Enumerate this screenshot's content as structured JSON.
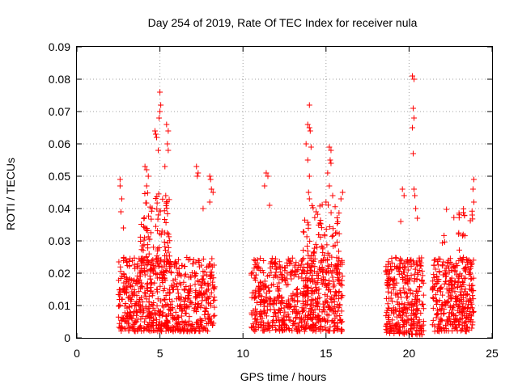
{
  "chart_data": {
    "type": "scatter",
    "title": "Day 254 of 2019, Rate Of TEC Index for receiver nula",
    "xlabel": "GPS time / hours",
    "ylabel": "ROTI / TECUs",
    "xlim": [
      0,
      25
    ],
    "ylim": [
      0,
      0.09
    ],
    "x_ticks": [
      "0",
      "5",
      "10",
      "15",
      "20",
      "25"
    ],
    "y_ticks": [
      "0",
      "0.01",
      "0.02",
      "0.03",
      "0.04",
      "0.05",
      "0.06",
      "0.07",
      "0.08",
      "0.09"
    ],
    "grid": true,
    "marker": "+",
    "color": "#ff0000",
    "clusters": [
      {
        "x_range": [
          2.5,
          8.3
        ],
        "y_range": [
          0.002,
          0.025
        ],
        "count": 700
      },
      {
        "x_range": [
          3.8,
          5.6
        ],
        "y_range": [
          0.02,
          0.045
        ],
        "count": 110
      },
      {
        "x_range": [
          10.5,
          16.0
        ],
        "y_range": [
          0.002,
          0.025
        ],
        "count": 650
      },
      {
        "x_range": [
          13.5,
          15.8
        ],
        "y_range": [
          0.02,
          0.042
        ],
        "count": 90
      },
      {
        "x_range": [
          18.6,
          20.9
        ],
        "y_range": [
          0.001,
          0.025
        ],
        "count": 320
      },
      {
        "x_range": [
          21.4,
          23.9
        ],
        "y_range": [
          0.002,
          0.025
        ],
        "count": 320
      },
      {
        "x_range": [
          22.0,
          23.9
        ],
        "y_range": [
          0.02,
          0.04
        ],
        "count": 40
      }
    ],
    "points": [
      [
        2.6,
        0.049
      ],
      [
        2.6,
        0.047
      ],
      [
        2.7,
        0.043
      ],
      [
        2.65,
        0.039
      ],
      [
        2.8,
        0.034
      ],
      [
        4.1,
        0.053
      ],
      [
        4.2,
        0.052
      ],
      [
        4.3,
        0.05
      ],
      [
        4.2,
        0.047
      ],
      [
        4.7,
        0.064
      ],
      [
        4.75,
        0.063
      ],
      [
        4.8,
        0.062
      ],
      [
        4.9,
        0.058
      ],
      [
        5.0,
        0.076
      ],
      [
        5.05,
        0.072
      ],
      [
        5.0,
        0.07
      ],
      [
        4.95,
        0.068
      ],
      [
        5.4,
        0.066
      ],
      [
        5.5,
        0.064
      ],
      [
        5.45,
        0.06
      ],
      [
        5.5,
        0.058
      ],
      [
        5.3,
        0.053
      ],
      [
        5.35,
        0.044
      ],
      [
        5.4,
        0.042
      ],
      [
        7.2,
        0.053
      ],
      [
        7.3,
        0.051
      ],
      [
        7.25,
        0.05
      ],
      [
        7.6,
        0.04
      ],
      [
        8.0,
        0.05
      ],
      [
        8.05,
        0.049
      ],
      [
        8.1,
        0.046
      ],
      [
        8.2,
        0.045
      ],
      [
        8.0,
        0.042
      ],
      [
        11.4,
        0.051
      ],
      [
        11.5,
        0.05
      ],
      [
        11.3,
        0.047
      ],
      [
        11.6,
        0.041
      ],
      [
        14.0,
        0.072
      ],
      [
        13.9,
        0.066
      ],
      [
        14.0,
        0.065
      ],
      [
        14.05,
        0.064
      ],
      [
        13.8,
        0.06
      ],
      [
        14.1,
        0.059
      ],
      [
        13.9,
        0.055
      ],
      [
        14.0,
        0.05
      ],
      [
        13.95,
        0.045
      ],
      [
        14.0,
        0.043
      ],
      [
        15.2,
        0.059
      ],
      [
        15.3,
        0.058
      ],
      [
        15.25,
        0.055
      ],
      [
        15.3,
        0.054
      ],
      [
        15.1,
        0.051
      ],
      [
        15.2,
        0.047
      ],
      [
        15.4,
        0.044
      ],
      [
        15.0,
        0.042
      ],
      [
        16.0,
        0.045
      ],
      [
        15.9,
        0.043
      ],
      [
        20.2,
        0.081
      ],
      [
        20.3,
        0.08
      ],
      [
        20.25,
        0.071
      ],
      [
        20.3,
        0.068
      ],
      [
        20.2,
        0.065
      ],
      [
        20.25,
        0.057
      ],
      [
        20.3,
        0.046
      ],
      [
        20.35,
        0.044
      ],
      [
        20.4,
        0.04
      ],
      [
        20.5,
        0.037
      ],
      [
        19.6,
        0.046
      ],
      [
        19.7,
        0.044
      ],
      [
        19.5,
        0.036
      ],
      [
        23.9,
        0.049
      ],
      [
        23.85,
        0.046
      ],
      [
        23.9,
        0.042
      ],
      [
        23.8,
        0.038
      ]
    ]
  }
}
